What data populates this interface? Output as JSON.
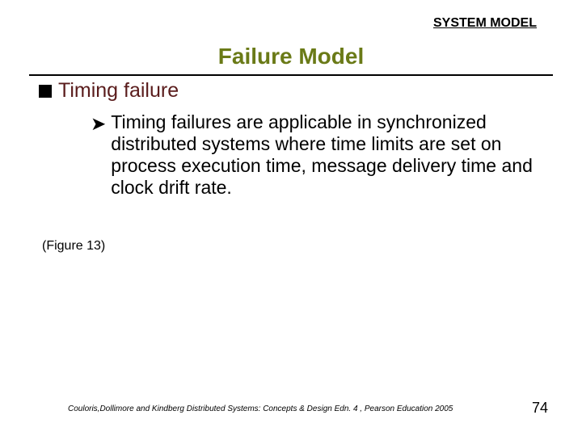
{
  "header": {
    "label": "SYSTEM MODEL",
    "fontsize": 16,
    "color": "#000000"
  },
  "title": {
    "text": "Failure Model",
    "fontsize": 28,
    "color": "#6a7a17"
  },
  "rule": {
    "color": "#000000"
  },
  "bullet": {
    "text": "Timing failure",
    "fontsize": 25,
    "color": "#5a1c1c",
    "marker_color": "#000000"
  },
  "subbullet": {
    "marker": "➤",
    "text": "Timing failures are applicable in synchronized distributed systems where time limits are set on process execution time, message delivery time and clock drift rate.",
    "fontsize": 23,
    "color": "#000000"
  },
  "figure_note": {
    "text": "(Figure 13)",
    "fontsize": 16,
    "color": "#000000"
  },
  "citation": {
    "text": "Couloris,Dollimore and Kindberg  Distributed Systems: Concepts & Design  Edn. 4 , Pearson Education 2005",
    "fontsize": 10,
    "color": "#000000"
  },
  "page_number": {
    "text": "74",
    "fontsize": 18,
    "color": "#000000"
  },
  "background_color": "#ffffff"
}
